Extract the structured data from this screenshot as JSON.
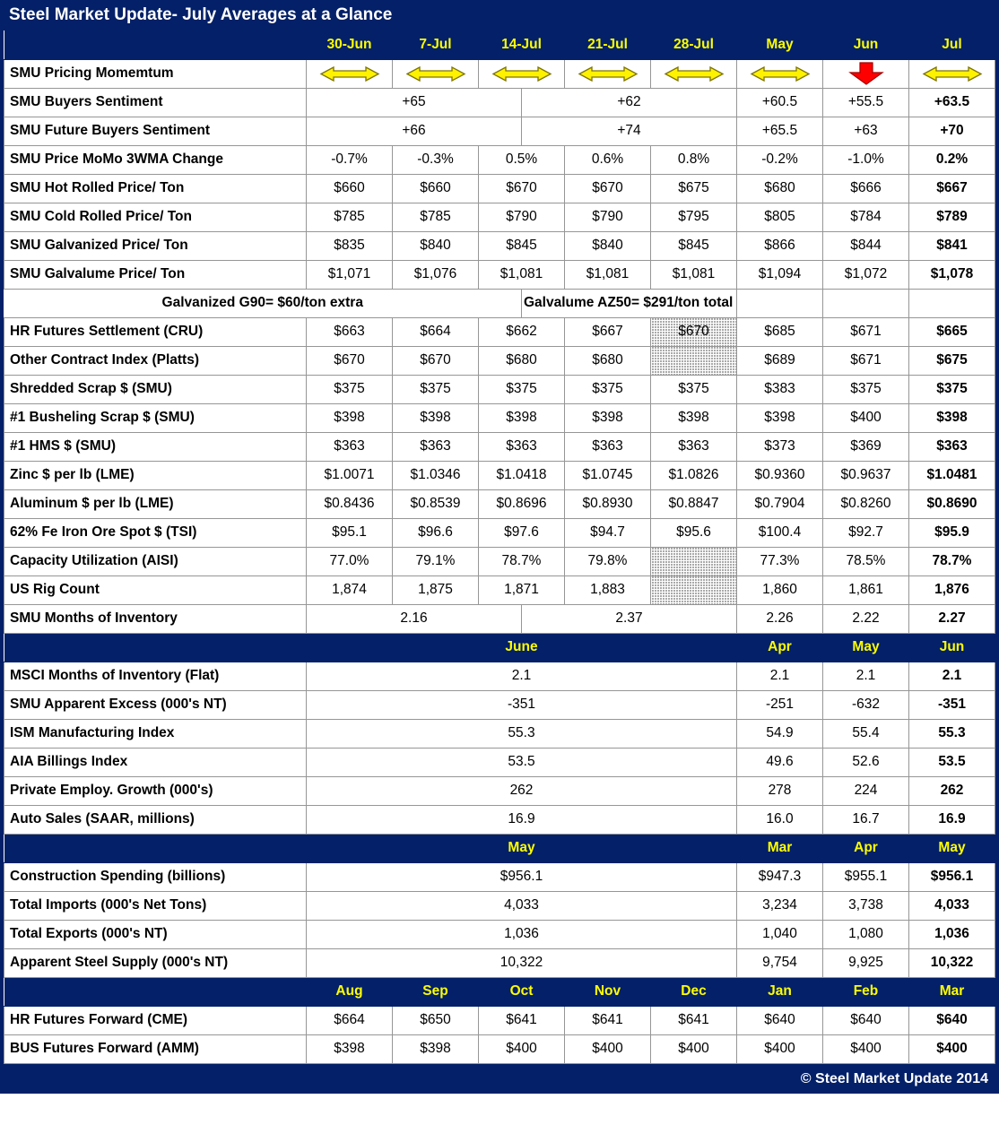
{
  "title": "Steel Market Update- July Averages at a Glance",
  "footer": "© Steel Market Update 2014",
  "colors": {
    "navy": "#032068",
    "header_yellow": "#FFFF00",
    "arrow_yellow": "#FFF200",
    "arrow_red": "#FE0000",
    "grid_line": "#969696"
  },
  "icons": {
    "flat": "momentum-flat-arrow-icon",
    "down": "momentum-down-arrow-icon"
  },
  "table": {
    "rows": [
      {
        "type": "section",
        "cells": [
          {
            "t": "30-Jun"
          },
          {
            "t": "7-Jul"
          },
          {
            "t": "14-Jul"
          },
          {
            "t": "21-Jul"
          },
          {
            "t": "28-Jul"
          },
          {
            "t": "May"
          },
          {
            "t": "Jun"
          },
          {
            "t": "Jul"
          }
        ]
      },
      {
        "type": "momentum",
        "label": "SMU Pricing Momemtum",
        "icons": [
          "flat",
          "flat",
          "flat",
          "flat",
          "flat",
          "flat",
          "down",
          "flat"
        ]
      },
      {
        "type": "split",
        "label": "SMU Buyers Sentiment",
        "left": "+65",
        "right": "+62",
        "monthly": [
          "+60.5",
          "+55.5",
          "+63.5"
        ]
      },
      {
        "type": "split",
        "label": "SMU Future Buyers Sentiment",
        "left": "+66",
        "right": "+74",
        "monthly": [
          "+65.5",
          "+63",
          "+70"
        ]
      },
      {
        "type": "data",
        "label": "SMU Price MoMo 3WMA Change",
        "cells": [
          "-0.7%",
          "-0.3%",
          "0.5%",
          "0.6%",
          "0.8%",
          "-0.2%",
          "-1.0%",
          "0.2%"
        ]
      },
      {
        "type": "data",
        "label": "SMU Hot Rolled Price/ Ton",
        "cells": [
          "$660",
          "$660",
          "$670",
          "$670",
          "$675",
          "$680",
          "$666",
          "$667"
        ]
      },
      {
        "type": "data",
        "label": "SMU Cold Rolled Price/ Ton",
        "cells": [
          "$785",
          "$785",
          "$790",
          "$790",
          "$795",
          "$805",
          "$784",
          "$789"
        ]
      },
      {
        "type": "data",
        "label": "SMU Galvanized Price/ Ton",
        "cells": [
          "$835",
          "$840",
          "$845",
          "$840",
          "$845",
          "$866",
          "$844",
          "$841"
        ]
      },
      {
        "type": "data",
        "label": "SMU Galvalume Price/ Ton",
        "cells": [
          "$1,071",
          "$1,076",
          "$1,081",
          "$1,081",
          "$1,081",
          "$1,094",
          "$1,072",
          "$1,078"
        ]
      },
      {
        "type": "note",
        "left": "Galvanized G90= $60/ton extra",
        "right": "Galvalume AZ50= $291/ton total extra"
      },
      {
        "type": "data",
        "label": "HR Futures Settlement (CRU)",
        "cells": [
          "$663",
          "$664",
          "$662",
          "$667",
          {
            "v": "$670",
            "hatch": true
          },
          "$685",
          "$671",
          "$665"
        ]
      },
      {
        "type": "data",
        "label": "Other Contract Index (Platts)",
        "cells": [
          "$670",
          "$670",
          "$680",
          "$680",
          {
            "v": "",
            "hatch": true
          },
          "$689",
          "$671",
          "$675"
        ]
      },
      {
        "type": "data",
        "label": "Shredded Scrap $ (SMU)",
        "cells": [
          "$375",
          "$375",
          "$375",
          "$375",
          "$375",
          "$383",
          "$375",
          "$375"
        ]
      },
      {
        "type": "data",
        "label": "#1 Busheling Scrap $ (SMU)",
        "cells": [
          "$398",
          "$398",
          "$398",
          "$398",
          "$398",
          "$398",
          "$400",
          "$398"
        ]
      },
      {
        "type": "data",
        "label": "#1 HMS $ (SMU)",
        "cells": [
          "$363",
          "$363",
          "$363",
          "$363",
          "$363",
          "$373",
          "$369",
          "$363"
        ]
      },
      {
        "type": "data",
        "label": "Zinc $ per lb (LME)",
        "cells": [
          "$1.0071",
          "$1.0346",
          "$1.0418",
          "$1.0745",
          "$1.0826",
          "$0.9360",
          "$0.9637",
          "$1.0481"
        ]
      },
      {
        "type": "data",
        "label": "Aluminum $ per lb (LME)",
        "cells": [
          "$0.8436",
          "$0.8539",
          "$0.8696",
          "$0.8930",
          "$0.8847",
          "$0.7904",
          "$0.8260",
          "$0.8690"
        ]
      },
      {
        "type": "data",
        "label": "62% Fe Iron Ore Spot $ (TSI)",
        "cells": [
          "$95.1",
          "$96.6",
          "$97.6",
          "$94.7",
          "$95.6",
          "$100.4",
          "$92.7",
          "$95.9"
        ]
      },
      {
        "type": "data",
        "label": "Capacity Utilization (AISI)",
        "cells": [
          "77.0%",
          "79.1%",
          "78.7%",
          "79.8%",
          {
            "v": "",
            "hatch": true
          },
          "77.3%",
          "78.5%",
          "78.7%"
        ]
      },
      {
        "type": "data",
        "label": "US Rig Count",
        "cells": [
          "1,874",
          "1,875",
          "1,871",
          "1,883",
          {
            "v": "",
            "hatch": true
          },
          "1,860",
          "1,861",
          "1,876"
        ]
      },
      {
        "type": "split",
        "label": "SMU Months of Inventory",
        "left": "2.16",
        "right": "2.37",
        "monthly": [
          "2.26",
          "2.22",
          "2.27"
        ]
      },
      {
        "type": "section",
        "cells": [
          {
            "t": "June",
            "span": 10
          },
          {
            "t": "Apr",
            "span": 2
          },
          {
            "t": "May",
            "span": 2
          },
          {
            "t": "Jun",
            "span": 2
          }
        ]
      },
      {
        "type": "span",
        "label": "MSCI Months of Inventory (Flat)",
        "value": "2.1",
        "monthly": [
          "2.1",
          "2.1",
          "2.1"
        ]
      },
      {
        "type": "span",
        "label": "SMU Apparent Excess (000's NT)",
        "value": "-351",
        "monthly": [
          "-251",
          "-632",
          "-351"
        ]
      },
      {
        "type": "span",
        "label": "ISM Manufacturing Index",
        "value": "55.3",
        "monthly": [
          "54.9",
          "55.4",
          "55.3"
        ]
      },
      {
        "type": "span",
        "label": "AIA Billings Index",
        "value": "53.5",
        "monthly": [
          "49.6",
          "52.6",
          "53.5"
        ]
      },
      {
        "type": "span",
        "label": "Private Employ. Growth (000's)",
        "value": "262",
        "monthly": [
          "278",
          "224",
          "262"
        ]
      },
      {
        "type": "span",
        "label": "Auto Sales (SAAR, millions)",
        "value": "16.9",
        "monthly": [
          "16.0",
          "16.7",
          "16.9"
        ]
      },
      {
        "type": "section",
        "cells": [
          {
            "t": "May",
            "span": 10
          },
          {
            "t": "Mar",
            "span": 2
          },
          {
            "t": "Apr",
            "span": 2
          },
          {
            "t": "May",
            "span": 2
          }
        ]
      },
      {
        "type": "span",
        "label": "Construction Spending (billions)",
        "value": "$956.1",
        "monthly": [
          "$947.3",
          "$955.1",
          "$956.1"
        ]
      },
      {
        "type": "span",
        "label": "Total Imports (000's Net Tons)",
        "value": "4,033",
        "monthly": [
          "3,234",
          "3,738",
          "4,033"
        ]
      },
      {
        "type": "span",
        "label": "Total Exports (000's NT)",
        "value": "1,036",
        "monthly": [
          "1,040",
          "1,080",
          "1,036"
        ]
      },
      {
        "type": "span",
        "label": "Apparent Steel Supply (000's NT)",
        "value": "10,322",
        "monthly": [
          "9,754",
          "9,925",
          "10,322"
        ]
      },
      {
        "type": "section",
        "cells": [
          {
            "t": "Aug"
          },
          {
            "t": "Sep"
          },
          {
            "t": "Oct"
          },
          {
            "t": "Nov"
          },
          {
            "t": "Dec"
          },
          {
            "t": "Jan"
          },
          {
            "t": "Feb"
          },
          {
            "t": "Mar"
          }
        ]
      },
      {
        "type": "data",
        "label": "HR Futures Forward (CME)",
        "cells": [
          "$664",
          "$650",
          "$641",
          "$641",
          "$641",
          "$640",
          "$640",
          "$640"
        ]
      },
      {
        "type": "data",
        "label": "BUS Futures Forward (AMM)",
        "cells": [
          "$398",
          "$398",
          "$400",
          "$400",
          "$400",
          "$400",
          "$400",
          "$400"
        ]
      }
    ]
  }
}
